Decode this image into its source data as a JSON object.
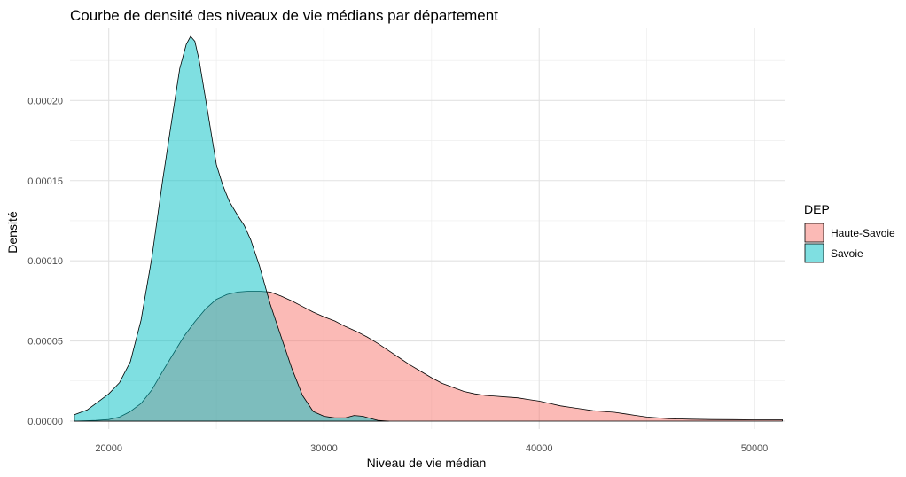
{
  "chart_data": {
    "type": "area",
    "title": "Courbe de densité des niveaux de vie médians par département",
    "xlabel": "Niveau de vie médian",
    "ylabel": "Densité",
    "xlim": [
      18200,
      51400
    ],
    "ylim": [
      -5e-06,
      0.000245
    ],
    "x_ticks": [
      20000,
      30000,
      40000,
      50000
    ],
    "x_tick_labels": [
      "20000",
      "30000",
      "40000",
      "50000"
    ],
    "y_ticks": [
      0,
      5e-05,
      0.0001,
      0.00015,
      0.0002
    ],
    "y_tick_labels": [
      "0.00000",
      "0.00005",
      "0.00010",
      "0.00015",
      "0.00020"
    ],
    "grid": true,
    "legend": {
      "title": "DEP",
      "position": "right"
    },
    "series": [
      {
        "name": "Haute-Savoie",
        "color": "#F8766D",
        "points": [
          [
            18400,
            0.0
          ],
          [
            19400,
            5e-07
          ],
          [
            20000,
            1e-06
          ],
          [
            20500,
            2.5e-06
          ],
          [
            21000,
            6e-06
          ],
          [
            21500,
            1.1e-05
          ],
          [
            22000,
            1.95e-05
          ],
          [
            22500,
            3.1e-05
          ],
          [
            23000,
            4.2e-05
          ],
          [
            23500,
            5.3e-05
          ],
          [
            24000,
            6.2e-05
          ],
          [
            24500,
            7e-05
          ],
          [
            25000,
            7.6e-05
          ],
          [
            25500,
            7.9e-05
          ],
          [
            26000,
            8.05e-05
          ],
          [
            26500,
            8.1e-05
          ],
          [
            27000,
            8.1e-05
          ],
          [
            27500,
            8.05e-05
          ],
          [
            28000,
            7.8e-05
          ],
          [
            28500,
            7.5e-05
          ],
          [
            29000,
            7.15e-05
          ],
          [
            29500,
            6.8e-05
          ],
          [
            30000,
            6.5e-05
          ],
          [
            30500,
            6.25e-05
          ],
          [
            31000,
            5.9e-05
          ],
          [
            31500,
            5.6e-05
          ],
          [
            32000,
            5.25e-05
          ],
          [
            32500,
            4.85e-05
          ],
          [
            33000,
            4.4e-05
          ],
          [
            33500,
            3.95e-05
          ],
          [
            34000,
            3.5e-05
          ],
          [
            34500,
            3.1e-05
          ],
          [
            35000,
            2.7e-05
          ],
          [
            35500,
            2.35e-05
          ],
          [
            36000,
            2.1e-05
          ],
          [
            36500,
            1.85e-05
          ],
          [
            37000,
            1.7e-05
          ],
          [
            37500,
            1.6e-05
          ],
          [
            38000,
            1.55e-05
          ],
          [
            38500,
            1.5e-05
          ],
          [
            39000,
            1.45e-05
          ],
          [
            39500,
            1.35e-05
          ],
          [
            40000,
            1.25e-05
          ],
          [
            40500,
            1.1e-05
          ],
          [
            41000,
            9.5e-06
          ],
          [
            41500,
            8.5e-06
          ],
          [
            42000,
            7.5e-06
          ],
          [
            42500,
            6.5e-06
          ],
          [
            43000,
            6e-06
          ],
          [
            43500,
            5.5e-06
          ],
          [
            44000,
            4.5e-06
          ],
          [
            44500,
            3.5e-06
          ],
          [
            45000,
            2.5e-06
          ],
          [
            45500,
            2e-06
          ],
          [
            46000,
            1.5e-06
          ],
          [
            47000,
            1.2e-06
          ],
          [
            48000,
            1e-06
          ],
          [
            49000,
            9e-07
          ],
          [
            50000,
            8e-07
          ],
          [
            51300,
            8e-07
          ]
        ]
      },
      {
        "name": "Savoie",
        "color": "#00BFC4",
        "points": [
          [
            18400,
            4e-06
          ],
          [
            19000,
            7e-06
          ],
          [
            19500,
            1.2e-05
          ],
          [
            20000,
            1.7e-05
          ],
          [
            20500,
            2.4e-05
          ],
          [
            21000,
            3.7e-05
          ],
          [
            21500,
            6.3e-05
          ],
          [
            22000,
            0.000102
          ],
          [
            22500,
            0.00015
          ],
          [
            23000,
            0.000194
          ],
          [
            23300,
            0.00022
          ],
          [
            23600,
            0.000235
          ],
          [
            23800,
            0.00024
          ],
          [
            24000,
            0.000237
          ],
          [
            24200,
            0.000225
          ],
          [
            24500,
            0.000201
          ],
          [
            25000,
            0.00016
          ],
          [
            25300,
            0.000147
          ],
          [
            25600,
            0.000137
          ],
          [
            26000,
            0.000128
          ],
          [
            26300,
            0.000122
          ],
          [
            26600,
            0.000113
          ],
          [
            27000,
            9.7e-05
          ],
          [
            27500,
            7.3e-05
          ],
          [
            28000,
            5.3e-05
          ],
          [
            28500,
            3.3e-05
          ],
          [
            29000,
            1.6e-05
          ],
          [
            29500,
            6e-06
          ],
          [
            30000,
            3e-06
          ],
          [
            30500,
            2e-06
          ],
          [
            31000,
            2e-06
          ],
          [
            31400,
            3.5e-06
          ],
          [
            31800,
            3e-06
          ],
          [
            32200,
            1.5e-06
          ],
          [
            32500,
            5e-07
          ],
          [
            33000,
            0.0
          ]
        ]
      }
    ]
  }
}
